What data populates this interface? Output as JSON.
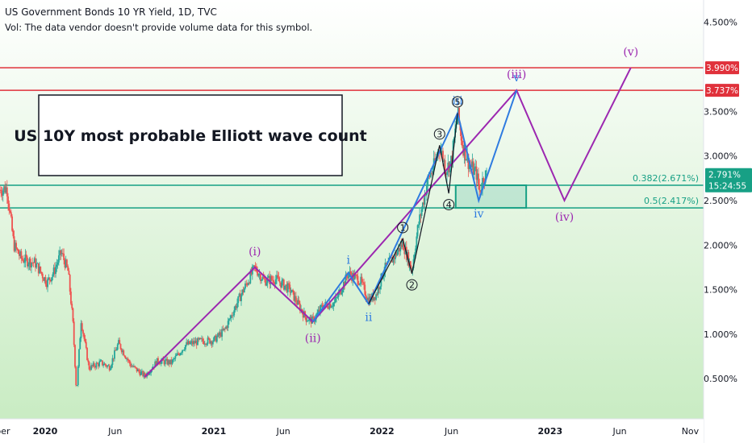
{
  "header": {
    "title": "US Government Bonds 10 YR Yield, 1D, TVC",
    "volume_note": "Vol: The data vendor doesn't provide volume data for this symbol."
  },
  "colors": {
    "background_top": "#ffffff",
    "background_bottom": "#c9ecc3",
    "candle_up": "#26a69a",
    "candle_down": "#ef5350",
    "resistance_line": "#e0313b",
    "support_line": "#17a085",
    "purple_wave": "#9c27b0",
    "blue_wave": "#2e7be0",
    "black_wave": "#131722"
  },
  "chart_data": {
    "type": "candlestick",
    "title": "US 10Y most probable Elliott wave count",
    "y_axis": {
      "ticks": [
        "4.500%",
        "3.500%",
        "3.000%",
        "2.500%",
        "2.000%",
        "1.500%",
        "1.000%",
        "0.500%"
      ],
      "tick_values": [
        4.5,
        3.5,
        3.0,
        2.5,
        2.0,
        1.5,
        1.0,
        0.5
      ],
      "ylim": [
        0.05,
        4.75
      ],
      "side": "right"
    },
    "x_axis": {
      "ticks": [
        "ber",
        "2020",
        "Jun",
        "2021",
        "Jun",
        "2022",
        "Jun",
        "2023",
        "Jun",
        "Nov"
      ],
      "tick_dates": [
        "2019-10-01",
        "2020-01-01",
        "2020-06-01",
        "2021-01-01",
        "2021-06-01",
        "2022-01-01",
        "2022-06-01",
        "2023-01-01",
        "2023-06-01",
        "2023-11-01"
      ],
      "xlim": [
        "2019-09-25",
        "2023-11-30"
      ]
    },
    "price_path": [
      [
        "2019-09-25",
        2.62
      ],
      [
        "2019-10-10",
        2.64
      ],
      [
        "2019-10-25",
        2.0
      ],
      [
        "2019-11-10",
        1.85
      ],
      [
        "2019-11-25",
        1.82
      ],
      [
        "2019-12-10",
        1.8
      ],
      [
        "2020-01-05",
        1.58
      ],
      [
        "2020-01-20",
        1.7
      ],
      [
        "2020-02-05",
        1.92
      ],
      [
        "2020-02-20",
        1.7
      ],
      [
        "2020-03-01",
        1.15
      ],
      [
        "2020-03-09",
        0.34
      ],
      [
        "2020-03-19",
        1.16
      ],
      [
        "2020-04-05",
        0.62
      ],
      [
        "2020-05-01",
        0.68
      ],
      [
        "2020-05-20",
        0.63
      ],
      [
        "2020-06-08",
        0.9
      ],
      [
        "2020-07-05",
        0.65
      ],
      [
        "2020-08-04",
        0.53
      ],
      [
        "2020-09-01",
        0.7
      ],
      [
        "2020-10-01",
        0.68
      ],
      [
        "2020-11-01",
        0.88
      ],
      [
        "2020-12-01",
        0.92
      ],
      [
        "2021-01-01",
        0.93
      ],
      [
        "2021-01-25",
        1.05
      ],
      [
        "2021-02-25",
        1.4
      ],
      [
        "2021-03-31",
        1.75
      ],
      [
        "2021-04-20",
        1.6
      ],
      [
        "2021-05-15",
        1.62
      ],
      [
        "2021-06-15",
        1.5
      ],
      [
        "2021-07-20",
        1.18
      ],
      [
        "2021-08-04",
        1.15
      ],
      [
        "2021-08-25",
        1.32
      ],
      [
        "2021-09-20",
        1.35
      ],
      [
        "2021-10-20",
        1.68
      ],
      [
        "2021-11-15",
        1.6
      ],
      [
        "2021-12-03",
        1.38
      ],
      [
        "2021-12-20",
        1.45
      ],
      [
        "2022-01-05",
        1.72
      ],
      [
        "2022-01-25",
        1.85
      ],
      [
        "2022-02-15",
        2.02
      ],
      [
        "2022-03-07",
        1.72
      ],
      [
        "2022-03-20",
        2.2
      ],
      [
        "2022-04-10",
        2.72
      ],
      [
        "2022-04-25",
        2.9
      ],
      [
        "2022-05-06",
        3.12
      ],
      [
        "2022-05-20",
        2.85
      ],
      [
        "2022-06-01",
        2.95
      ],
      [
        "2022-06-14",
        3.48
      ],
      [
        "2022-06-25",
        3.12
      ],
      [
        "2022-07-10",
        2.9
      ],
      [
        "2022-07-25",
        2.8
      ],
      [
        "2022-08-01",
        2.6
      ],
      [
        "2022-08-10",
        2.78
      ],
      [
        "2022-08-16",
        2.791
      ]
    ],
    "last_price": {
      "label": "2.791%",
      "value": 2.791,
      "countdown": "15:24:55"
    },
    "horizontal_levels": [
      {
        "label": "3.990%",
        "value": 3.99,
        "color": "#e0313b"
      },
      {
        "label": "3.737%",
        "value": 3.737,
        "color": "#e0313b"
      },
      {
        "label": "0.382(2.671%)",
        "value": 2.671,
        "color": "#17a085"
      },
      {
        "label": "0.5(2.417%)",
        "value": 2.417,
        "color": "#17a085"
      }
    ],
    "fib_zone": {
      "x_start": "2022-06-10",
      "x_end": "2022-11-10",
      "y_top": 2.671,
      "y_bottom": 2.417
    },
    "waves": [
      {
        "degree": "intermediate",
        "color": "#9c27b0",
        "points": [
          {
            "x": "2020-08-04",
            "y": 0.52,
            "label": ""
          },
          {
            "x": "2021-03-31",
            "y": 1.75,
            "label": "(i)"
          },
          {
            "x": "2021-08-04",
            "y": 1.14,
            "label": "(ii)"
          },
          {
            "x": "2022-10-20",
            "y": 3.737,
            "label": "(iii)"
          },
          {
            "x": "2023-02-01",
            "y": 2.5,
            "label": "(iv)"
          },
          {
            "x": "2023-06-25",
            "y": 3.99,
            "label": "(v)"
          }
        ]
      },
      {
        "degree": "minor",
        "color": "#2e7be0",
        "points": [
          {
            "x": "2021-08-04",
            "y": 1.14,
            "label": ""
          },
          {
            "x": "2021-10-20",
            "y": 1.69,
            "label": "i"
          },
          {
            "x": "2021-12-03",
            "y": 1.34,
            "label": "ii"
          },
          {
            "x": "2022-06-14",
            "y": 3.48,
            "label": "iii"
          },
          {
            "x": "2022-07-30",
            "y": 2.5,
            "label": "iv"
          },
          {
            "x": "2022-10-20",
            "y": 3.737,
            "label": "v"
          }
        ]
      },
      {
        "degree": "minute",
        "color": "#131722",
        "points": [
          {
            "x": "2021-12-03",
            "y": 1.34,
            "label": ""
          },
          {
            "x": "2022-02-15",
            "y": 2.07,
            "label": "1"
          },
          {
            "x": "2022-03-07",
            "y": 1.68,
            "label": "2"
          },
          {
            "x": "2022-05-06",
            "y": 3.12,
            "label": "3"
          },
          {
            "x": "2022-05-26",
            "y": 2.58,
            "label": "4"
          },
          {
            "x": "2022-06-14",
            "y": 3.48,
            "label": "5"
          }
        ]
      }
    ]
  }
}
